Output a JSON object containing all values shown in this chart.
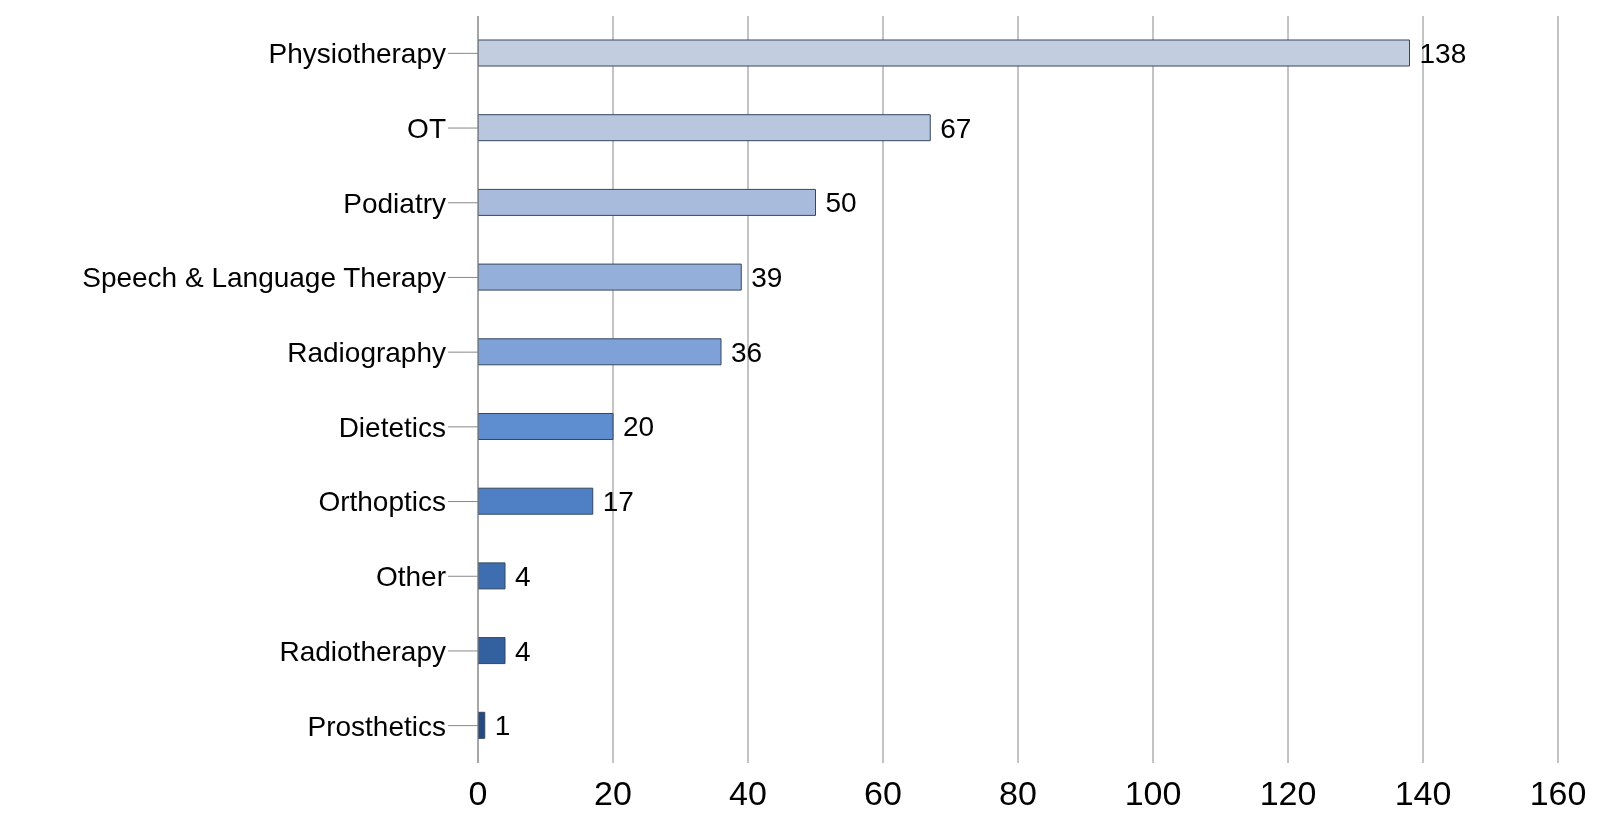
{
  "chart_data": {
    "type": "bar",
    "orientation": "horizontal",
    "categories": [
      "Physiotherapy",
      "OT",
      "Podiatry",
      "Speech & Language Therapy",
      "Radiography",
      "Dietetics",
      "Orthoptics",
      "Other",
      "Radiotherapy",
      "Prosthetics"
    ],
    "values": [
      138,
      67,
      50,
      39,
      36,
      20,
      17,
      4,
      4,
      1
    ],
    "colors": [
      "#c3cde0",
      "#b8c6de",
      "#a8bbdd",
      "#95afdb",
      "#7ea2d8",
      "#5e8ed0",
      "#4f80c6",
      "#3e6eb0",
      "#33609e",
      "#244a82"
    ],
    "xlim": [
      0,
      160
    ],
    "xticks": [
      0,
      20,
      40,
      60,
      80,
      100,
      120,
      140,
      160
    ],
    "grid": "x",
    "data_labels": true
  }
}
